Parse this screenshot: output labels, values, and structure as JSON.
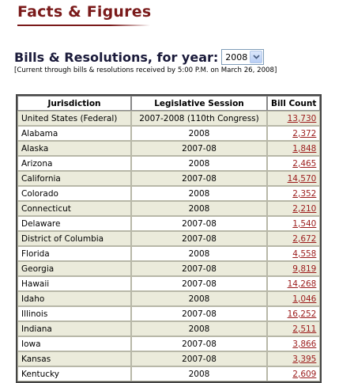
{
  "header": {
    "title": "Facts & Figures"
  },
  "filter": {
    "heading": "Bills & Resolutions, for year:",
    "year": "2008",
    "note": "[Current through bills & resolutions received by 5:00 P.M. on March 26, 2008]"
  },
  "table": {
    "columns": [
      "Jurisdiction",
      "Legislative Session",
      "Bill Count"
    ],
    "rows": [
      {
        "jurisdiction": "United States (Federal)",
        "session": "2007-2008 (110th Congress)",
        "count": "13,730"
      },
      {
        "jurisdiction": "Alabama",
        "session": "2008",
        "count": "2,372"
      },
      {
        "jurisdiction": "Alaska",
        "session": "2007-08",
        "count": "1,848"
      },
      {
        "jurisdiction": "Arizona",
        "session": "2008",
        "count": "2,465"
      },
      {
        "jurisdiction": "California",
        "session": "2007-08",
        "count": "14,570"
      },
      {
        "jurisdiction": "Colorado",
        "session": "2008",
        "count": "2,352"
      },
      {
        "jurisdiction": "Connecticut",
        "session": "2008",
        "count": "2,210"
      },
      {
        "jurisdiction": "Delaware",
        "session": "2007-08",
        "count": "1,540"
      },
      {
        "jurisdiction": "District of Columbia",
        "session": "2007-08",
        "count": "2,672"
      },
      {
        "jurisdiction": "Florida",
        "session": "2008",
        "count": "4,558"
      },
      {
        "jurisdiction": "Georgia",
        "session": "2007-08",
        "count": "9,819"
      },
      {
        "jurisdiction": "Hawaii",
        "session": "2007-08",
        "count": "14,268"
      },
      {
        "jurisdiction": "Idaho",
        "session": "2008",
        "count": "1,046"
      },
      {
        "jurisdiction": "Illinois",
        "session": "2007-08",
        "count": "16,252"
      },
      {
        "jurisdiction": "Indiana",
        "session": "2008",
        "count": "2,511"
      },
      {
        "jurisdiction": "Iowa",
        "session": "2007-08",
        "count": "3,866"
      },
      {
        "jurisdiction": "Kansas",
        "session": "2007-08",
        "count": "3,395"
      },
      {
        "jurisdiction": "Kentucky",
        "session": "2008",
        "count": "2,609"
      }
    ]
  },
  "colors": {
    "title": "#7a1a1a",
    "link": "#9b1b1b",
    "alt_row": "#ebebdb"
  },
  "icons": {
    "dropdown": "chevron-down-icon"
  }
}
